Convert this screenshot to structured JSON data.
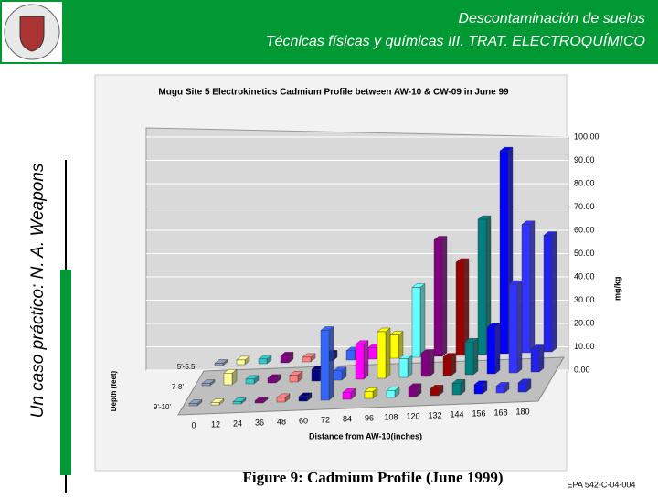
{
  "header": {
    "title_line1": "Descontaminación de suelos",
    "title_line2": "Técnicas físicas y químicas III. TRAT. ELECTROQUÍMICO"
  },
  "side_title": "Un caso práctico: N. A. Weapons",
  "chart_data": {
    "type": "bar3d",
    "title": "Mugu Site 5 Electrokinetics  Cadmium Profile  between AW-10 & CW-09  in June 99",
    "x_label": "Distance from AW-10(inches)",
    "y_label": "mg/kg",
    "z_label": "Depth (feet)",
    "categories": [
      "0",
      "12",
      "24",
      "36",
      "48",
      "60",
      "72",
      "84",
      "96",
      "108",
      "120",
      "132",
      "144",
      "156",
      "168",
      "180"
    ],
    "colors": [
      "#8da0c0",
      "#ffff99",
      "#33cccc",
      "#800080",
      "#ff8080",
      "#000080",
      "#3366ff",
      "#ff00ff",
      "#ffff00",
      "#66ffff",
      "#800080",
      "#990000",
      "#008080",
      "#0000ff",
      "#3333ff",
      "#2222ee"
    ],
    "series": [
      {
        "name": "5'-5.5'",
        "values": [
          1,
          2,
          2,
          3,
          2,
          3,
          4,
          5,
          10,
          30,
          50,
          40,
          58,
          87,
          55,
          50
        ]
      },
      {
        "name": "7-8'",
        "values": [
          1,
          5,
          2,
          2,
          3,
          5,
          4,
          15,
          20,
          8,
          10,
          8,
          14,
          20,
          38,
          10
        ]
      },
      {
        "name": "9'-10'",
        "values": [
          1,
          1,
          1,
          1,
          2,
          2,
          30,
          3,
          3,
          3,
          4,
          3,
          5,
          4,
          3,
          4
        ]
      }
    ],
    "ylim": [
      0,
      100
    ],
    "yticks": [
      {
        "value": 0,
        "label": "0.00"
      },
      {
        "value": 10,
        "label": "10.00"
      },
      {
        "value": 20,
        "label": "20.00"
      },
      {
        "value": 30,
        "label": "30.00"
      },
      {
        "value": 40,
        "label": "40.00"
      },
      {
        "value": 50,
        "label": "50.00"
      },
      {
        "value": 60,
        "label": "60.00"
      },
      {
        "value": 70,
        "label": "70.00"
      },
      {
        "value": 80,
        "label": "80.00"
      },
      {
        "value": 90,
        "label": "90.00"
      },
      {
        "value": 100,
        "label": "100.00"
      }
    ],
    "grid": true
  },
  "caption": "Figure 9: Cadmium Profile (June 1999)",
  "footer_code": "EPA 542-C-04-004"
}
